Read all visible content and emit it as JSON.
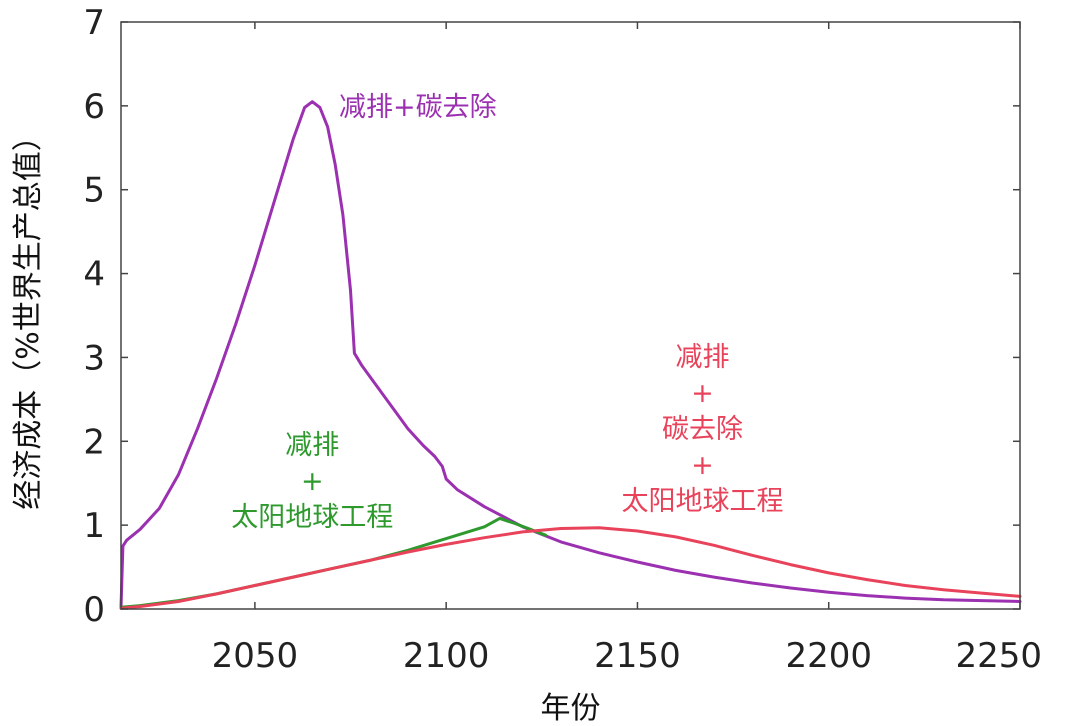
{
  "chart_data": {
    "type": "line",
    "title": "",
    "xlabel": "年份",
    "ylabel": "经济成本（%世界生产总值）",
    "xlim": [
      2015,
      2250
    ],
    "ylim": [
      0,
      7
    ],
    "x_ticks": [
      2050,
      2100,
      2150,
      2200,
      2250
    ],
    "y_ticks": [
      0,
      1,
      2,
      3,
      4,
      5,
      6,
      7
    ],
    "grid": false,
    "legend": "none",
    "series": [
      {
        "color": "#9b30b0",
        "points": [
          [
            2015,
            0.02
          ],
          [
            2015.5,
            0.75
          ],
          [
            2016.5,
            0.82
          ],
          [
            2020,
            0.95
          ],
          [
            2025,
            1.2
          ],
          [
            2030,
            1.6
          ],
          [
            2035,
            2.15
          ],
          [
            2040,
            2.75
          ],
          [
            2045,
            3.4
          ],
          [
            2050,
            4.1
          ],
          [
            2055,
            4.85
          ],
          [
            2060,
            5.6
          ],
          [
            2063,
            5.98
          ],
          [
            2065,
            6.05
          ],
          [
            2067,
            5.98
          ],
          [
            2069,
            5.75
          ],
          [
            2071,
            5.3
          ],
          [
            2073,
            4.7
          ],
          [
            2075,
            3.8
          ],
          [
            2076,
            3.05
          ],
          [
            2078,
            2.9
          ],
          [
            2082,
            2.65
          ],
          [
            2086,
            2.4
          ],
          [
            2090,
            2.15
          ],
          [
            2094,
            1.95
          ],
          [
            2097,
            1.82
          ],
          [
            2099,
            1.7
          ],
          [
            2100,
            1.55
          ],
          [
            2103,
            1.42
          ],
          [
            2110,
            1.22
          ],
          [
            2120,
            0.98
          ],
          [
            2130,
            0.8
          ],
          [
            2140,
            0.67
          ],
          [
            2150,
            0.56
          ],
          [
            2160,
            0.46
          ],
          [
            2170,
            0.38
          ],
          [
            2180,
            0.31
          ],
          [
            2190,
            0.25
          ],
          [
            2200,
            0.2
          ],
          [
            2210,
            0.16
          ],
          [
            2220,
            0.13
          ],
          [
            2230,
            0.11
          ],
          [
            2240,
            0.1
          ],
          [
            2250,
            0.09
          ]
        ]
      },
      {
        "color": "#2e9a2e",
        "points": [
          [
            2015,
            0.02
          ],
          [
            2020,
            0.04
          ],
          [
            2030,
            0.1
          ],
          [
            2040,
            0.18
          ],
          [
            2050,
            0.28
          ],
          [
            2060,
            0.38
          ],
          [
            2070,
            0.48
          ],
          [
            2080,
            0.58
          ],
          [
            2090,
            0.7
          ],
          [
            2100,
            0.84
          ],
          [
            2110,
            0.98
          ],
          [
            2114,
            1.08
          ],
          [
            2118,
            1.02
          ],
          [
            2122,
            0.95
          ],
          [
            2126,
            0.88
          ]
        ]
      },
      {
        "color": "#e8435a",
        "points": [
          [
            2015,
            0.01
          ],
          [
            2020,
            0.03
          ],
          [
            2030,
            0.09
          ],
          [
            2040,
            0.18
          ],
          [
            2050,
            0.28
          ],
          [
            2060,
            0.38
          ],
          [
            2070,
            0.48
          ],
          [
            2080,
            0.58
          ],
          [
            2090,
            0.68
          ],
          [
            2100,
            0.77
          ],
          [
            2110,
            0.85
          ],
          [
            2120,
            0.92
          ],
          [
            2130,
            0.96
          ],
          [
            2140,
            0.97
          ],
          [
            2150,
            0.93
          ],
          [
            2160,
            0.86
          ],
          [
            2170,
            0.76
          ],
          [
            2180,
            0.64
          ],
          [
            2190,
            0.53
          ],
          [
            2200,
            0.43
          ],
          [
            2210,
            0.35
          ],
          [
            2220,
            0.28
          ],
          [
            2230,
            0.23
          ],
          [
            2240,
            0.19
          ],
          [
            2250,
            0.15
          ]
        ]
      }
    ],
    "annotations": [
      {
        "color": "#9b30b0",
        "anchor": "start",
        "x": 2072,
        "y": 5.88,
        "lines": [
          "减排+碳去除"
        ]
      },
      {
        "color": "#2e9a2e",
        "anchor": "middle",
        "x": 2065,
        "y": 1.85,
        "lines": [
          "减排",
          "+",
          "太阳地球工程"
        ]
      },
      {
        "color": "#e8435a",
        "anchor": "middle",
        "x": 2167,
        "y": 2.9,
        "lines": [
          "减排",
          "+",
          "碳去除",
          "+",
          "太阳地球工程"
        ]
      }
    ]
  }
}
